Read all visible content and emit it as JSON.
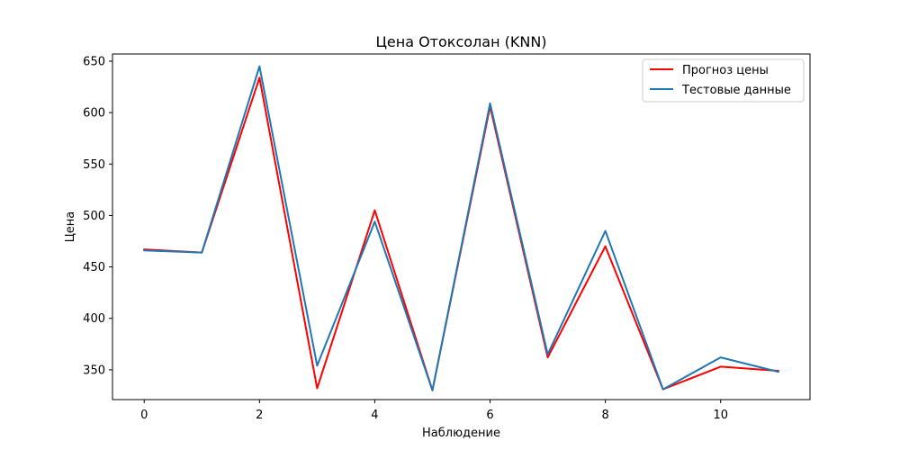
{
  "chart_data": {
    "type": "line",
    "title": "Цена Отоксолан  (KNN)",
    "xlabel": "Наблюдение",
    "ylabel": "Цена",
    "x": [
      0,
      1,
      2,
      3,
      4,
      5,
      6,
      7,
      8,
      9,
      10,
      11
    ],
    "xlim": [
      -0.55,
      11.55
    ],
    "ylim": [
      321,
      657
    ],
    "xticks": [
      0,
      2,
      4,
      6,
      8,
      10
    ],
    "yticks": [
      350,
      400,
      450,
      500,
      550,
      600,
      650
    ],
    "grid": false,
    "legend_position": "top-right",
    "series": [
      {
        "name": "Прогноз цены",
        "color": "#ff0000",
        "values": [
          467,
          464,
          634,
          332,
          505,
          330,
          606,
          362,
          470,
          331,
          353,
          349
        ]
      },
      {
        "name": "Тестовые данные",
        "color": "#1f77b4",
        "values": [
          466,
          464,
          645,
          354,
          494,
          330,
          609,
          365,
          485,
          331,
          362,
          348
        ]
      }
    ]
  }
}
